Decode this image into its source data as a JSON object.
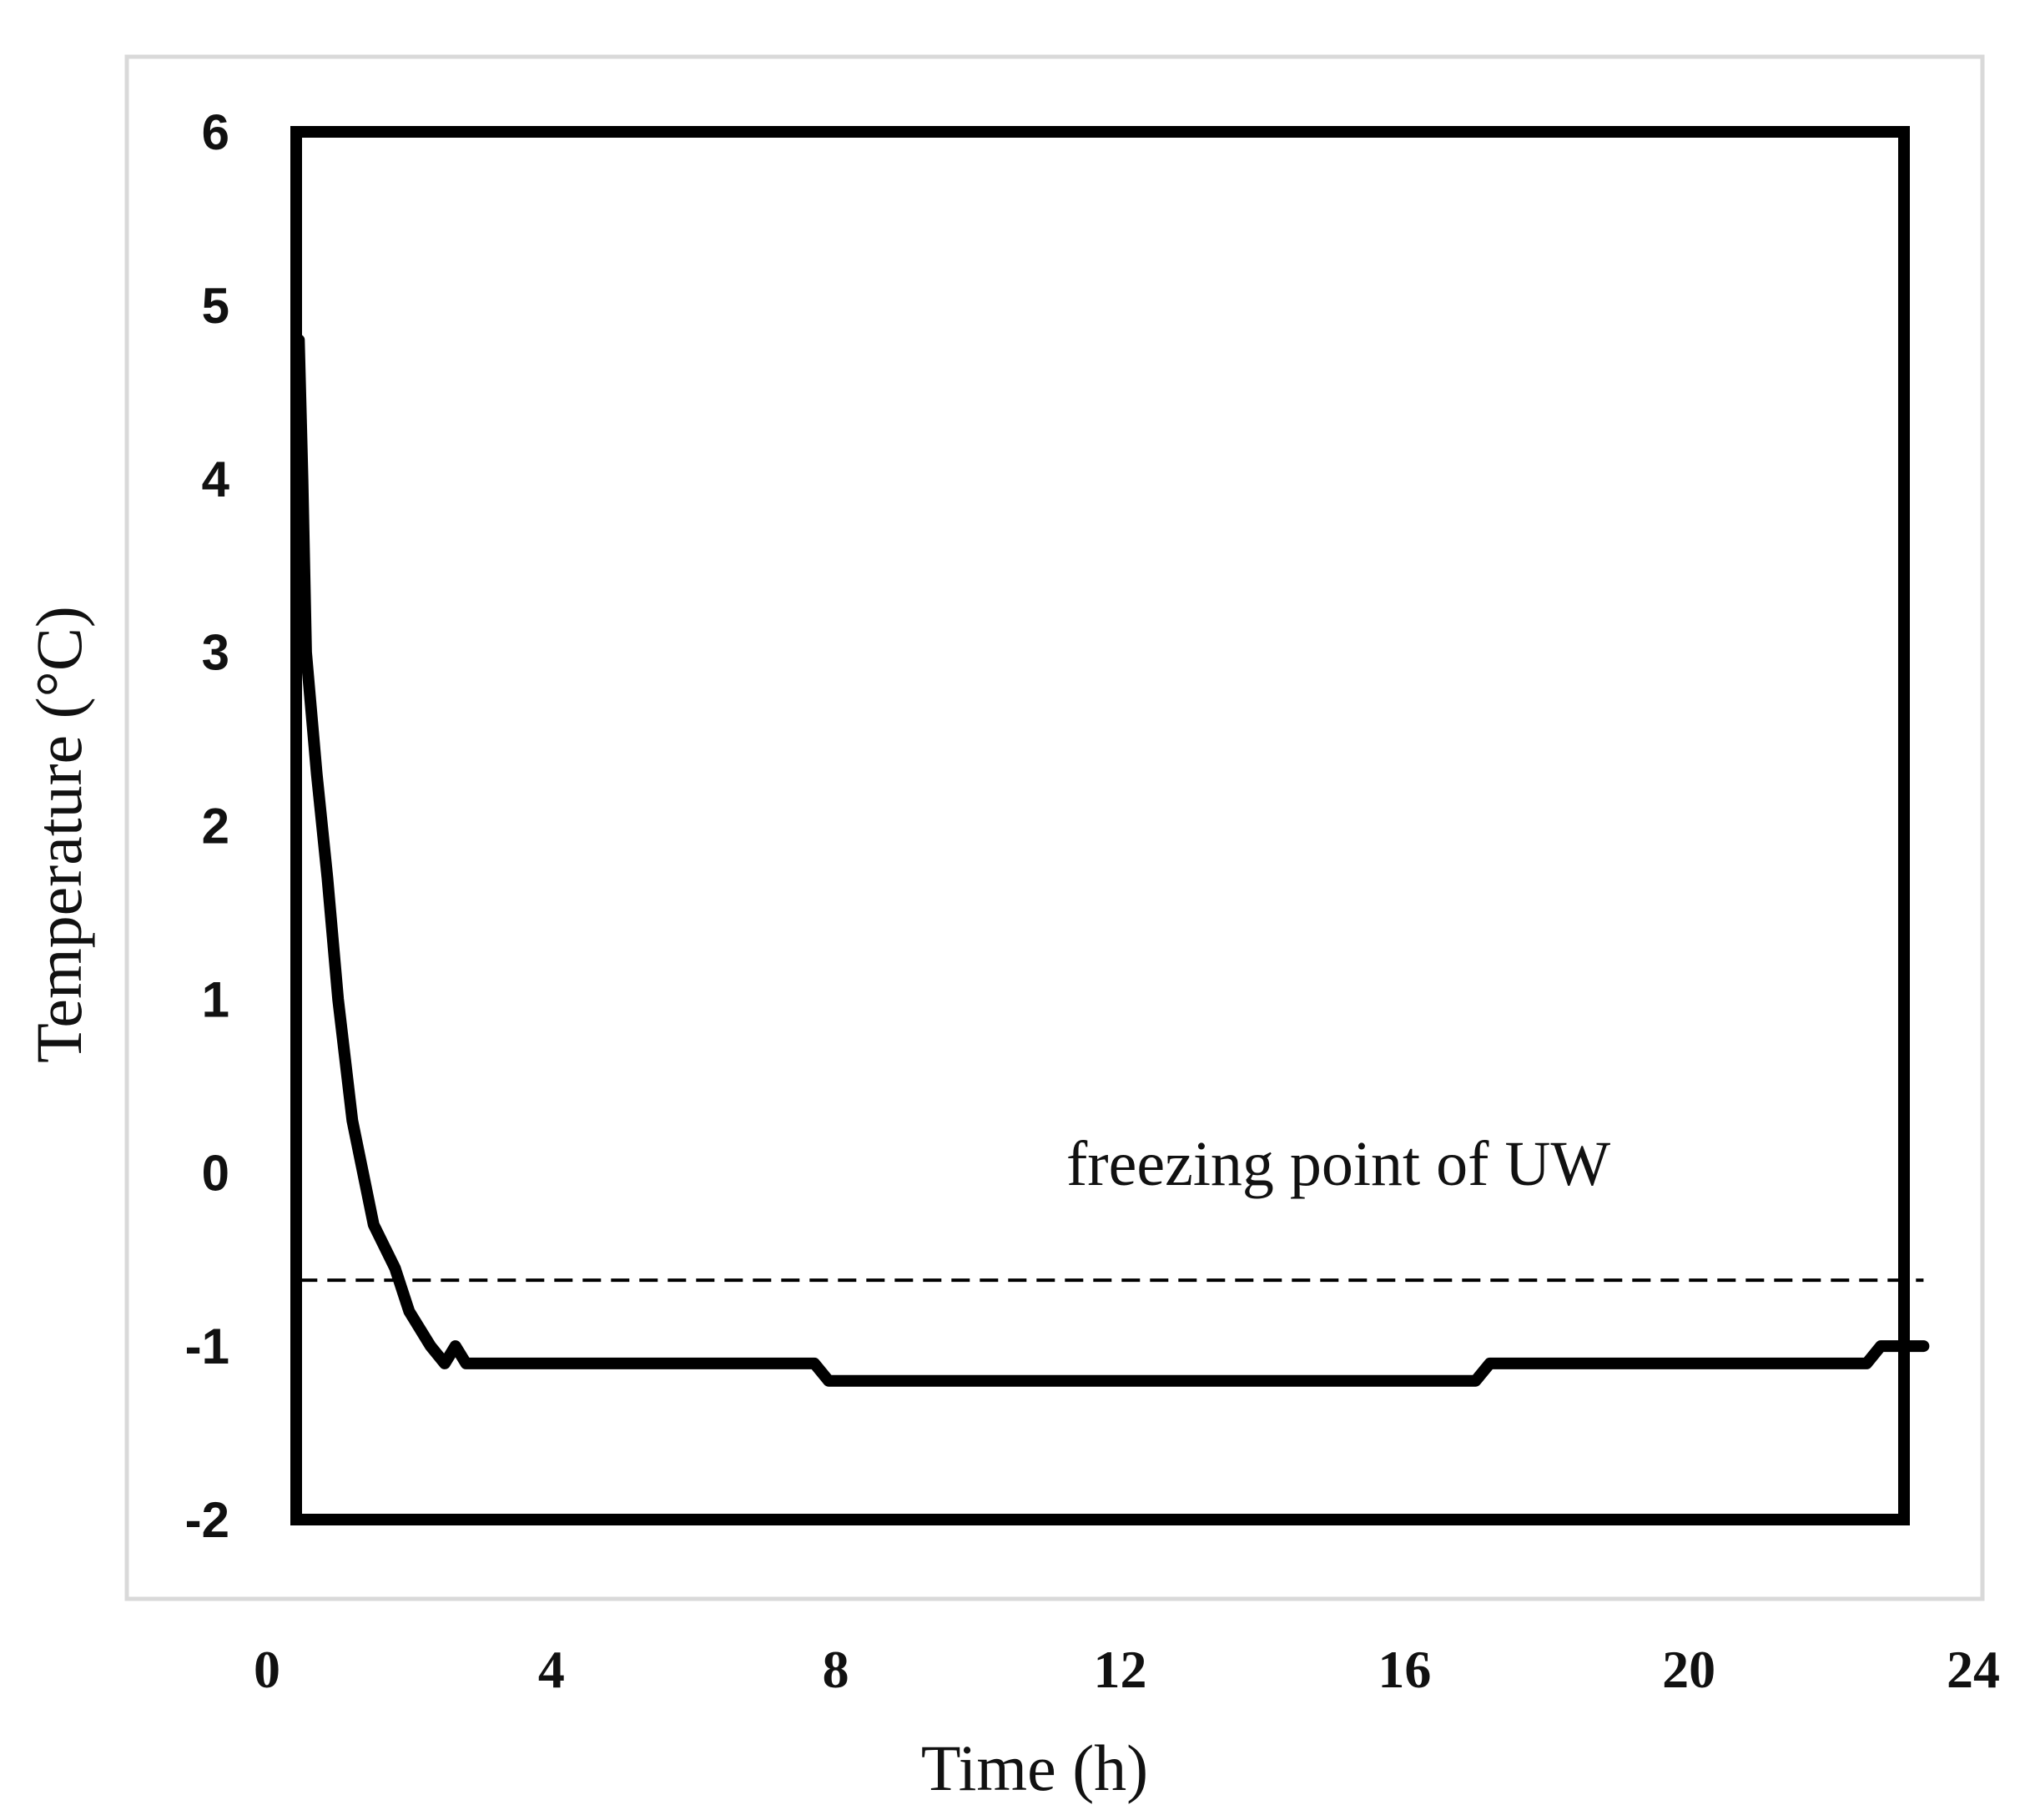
{
  "chart_data": {
    "type": "line",
    "title": "",
    "xlabel": "Time (h)",
    "ylabel": "Temperature (°C)",
    "xlim": [
      0,
      24
    ],
    "ylim": [
      -2,
      6
    ],
    "x_ticks": [
      "0",
      "4",
      "8",
      "12",
      "16",
      "20",
      "24"
    ],
    "y_ticks": [
      "6",
      "5",
      "4",
      "3",
      "2",
      "1",
      "0",
      "-1",
      "-2"
    ],
    "grid": false,
    "legend": "none",
    "series": [
      {
        "color": "#000000",
        "style": "solid",
        "points": [
          [
            0.45,
            4.8
          ],
          [
            0.5,
            4.0
          ],
          [
            0.55,
            3.0
          ],
          [
            0.7,
            2.3
          ],
          [
            0.85,
            1.7
          ],
          [
            1.0,
            1.0
          ],
          [
            1.2,
            0.3
          ],
          [
            1.5,
            -0.3
          ],
          [
            1.8,
            -0.55
          ],
          [
            2.0,
            -0.8
          ],
          [
            2.3,
            -1.0
          ],
          [
            2.5,
            -1.1
          ],
          [
            2.65,
            -1.0
          ],
          [
            2.8,
            -1.1
          ],
          [
            7.7,
            -1.1
          ],
          [
            7.9,
            -1.2
          ],
          [
            17.0,
            -1.2
          ],
          [
            17.2,
            -1.1
          ],
          [
            22.5,
            -1.1
          ],
          [
            22.7,
            -1.0
          ],
          [
            23.3,
            -1.0
          ]
        ]
      },
      {
        "color": "#000000",
        "style": "dashed",
        "points": [
          [
            0.45,
            -0.62
          ],
          [
            23.3,
            -0.62
          ]
        ]
      }
    ],
    "annotations": [
      {
        "text": "freezing point of UW",
        "x": 13.3,
        "y": -0.05
      }
    ]
  }
}
